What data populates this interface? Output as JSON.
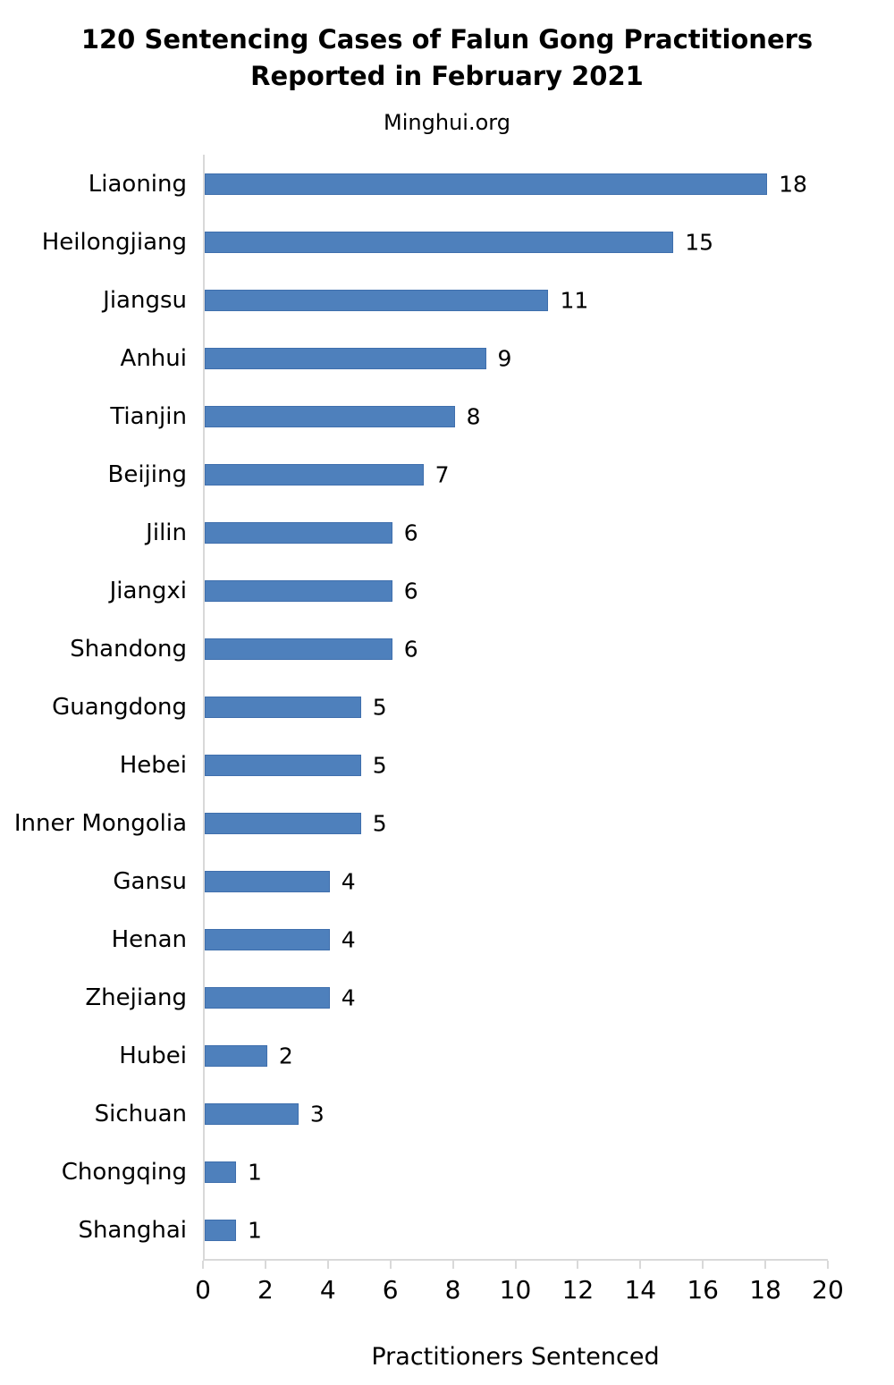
{
  "header": {
    "title": "120 Sentencing Cases of Falun Gong Practitioners Reported in February 2021",
    "title_lines": [
      "120 Sentencing Cases of Falun Gong Practitioners",
      "Reported in February 2021"
    ],
    "subtitle": "Minghui.org"
  },
  "chart_data": {
    "type": "bar",
    "orientation": "horizontal",
    "title": "120 Sentencing Cases of Falun Gong Practitioners Reported in February 2021",
    "subtitle": "Minghui.org",
    "categories": [
      "Liaoning",
      "Heilongjiang",
      "Jiangsu",
      "Anhui",
      "Tianjin",
      "Beijing",
      "Jilin",
      "Jiangxi",
      "Shandong",
      "Guangdong",
      "Hebei",
      "Inner Mongolia",
      "Gansu",
      "Henan",
      "Zhejiang",
      "Hubei",
      "Sichuan",
      "Chongqing",
      "Shanghai"
    ],
    "values": [
      18,
      15,
      11,
      9,
      8,
      7,
      6,
      6,
      6,
      5,
      5,
      5,
      4,
      4,
      4,
      2,
      3,
      1,
      1
    ],
    "xlabel": "Practitioners Sentenced",
    "ylabel": "",
    "xlim": [
      0,
      20
    ],
    "xticks": [
      0,
      2,
      4,
      6,
      8,
      10,
      12,
      14,
      16,
      18,
      20
    ],
    "grid": false,
    "legend": false,
    "value_labels": true,
    "bar_color": "#4e80bc",
    "bar_border_color": "#3f6fad",
    "axis_color": "#d9d9d9",
    "text_color": "#000000"
  }
}
